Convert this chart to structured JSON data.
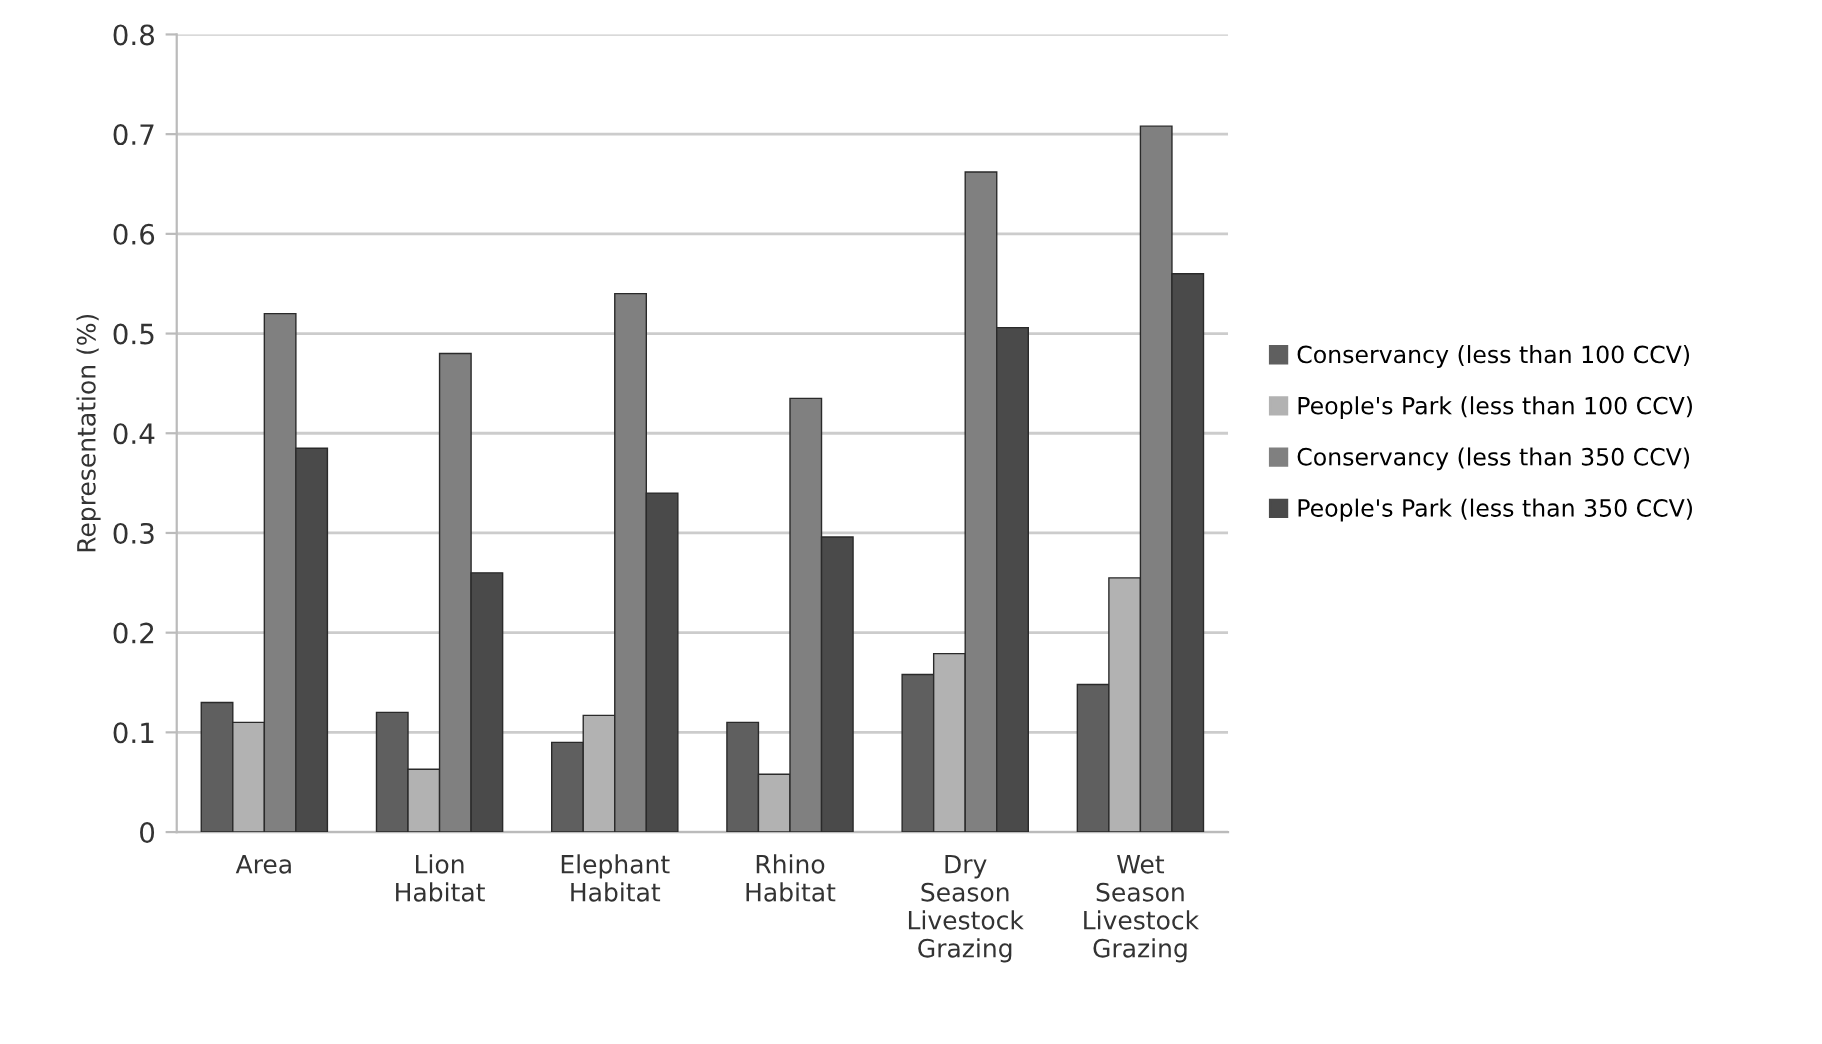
{
  "chart_data": {
    "type": "bar",
    "ylabel": "Representation (%)",
    "categories": [
      "Area",
      "Lion\nHabitat",
      "Elephant\nHabitat",
      "Rhino\nHabitat",
      "Dry\nSeason\nLivestock\nGrazing",
      "Wet\nSeason\nLivestock\nGrazing"
    ],
    "series": [
      {
        "name": "Conservancy (less than 100 CCV)",
        "color": "#5f5f5f",
        "values": [
          0.13,
          0.12,
          0.09,
          0.11,
          0.158,
          0.148
        ]
      },
      {
        "name": "People's Park (less than 100 CCV)",
        "color": "#b2b2b2",
        "values": [
          0.11,
          0.063,
          0.117,
          0.058,
          0.179,
          0.255
        ]
      },
      {
        "name": "Conservancy (less than 350 CCV)",
        "color": "#808080",
        "values": [
          0.52,
          0.48,
          0.54,
          0.435,
          0.662,
          0.708
        ]
      },
      {
        "name": "People's Park (less than 350 CCV)",
        "color": "#4a4a4a",
        "values": [
          0.385,
          0.26,
          0.34,
          0.296,
          0.506,
          0.56
        ]
      }
    ],
    "ylim": [
      0,
      0.8
    ],
    "yticks": [
      {
        "value": 0,
        "label": "0"
      },
      0.1,
      0.2,
      0.3,
      0.4,
      0.5,
      0.6,
      0.7,
      0.8
    ],
    "grid": "y",
    "legend": "right"
  }
}
